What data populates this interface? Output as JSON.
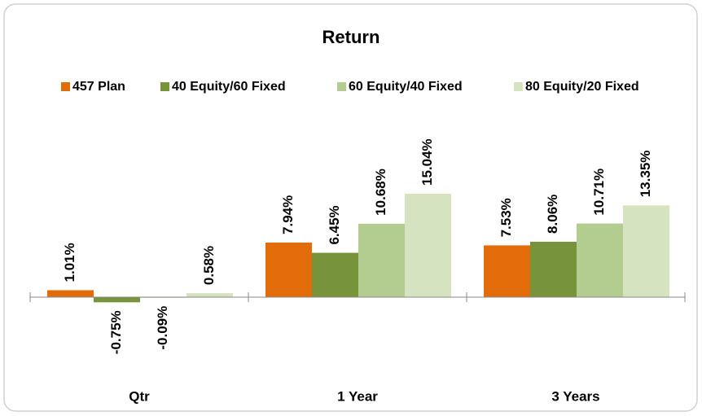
{
  "chart_data": {
    "type": "bar",
    "title": "Return",
    "categories": [
      "Qtr",
      "1 Year",
      "3 Years"
    ],
    "series": [
      {
        "name": "457 Plan",
        "color": "#e36c0a",
        "values": [
          1.01,
          7.94,
          7.53
        ],
        "value_labels": [
          "1.01%",
          "7.94%",
          "7.53%"
        ]
      },
      {
        "name": "40 Equity/60 Fixed",
        "color": "#77933c",
        "values": [
          -0.75,
          6.45,
          8.06
        ],
        "value_labels": [
          "-0.75%",
          "6.45%",
          "8.06%"
        ]
      },
      {
        "name": "60 Equity/40 Fixed",
        "color": "#b3cc8f",
        "values": [
          -0.09,
          10.68,
          10.71
        ],
        "value_labels": [
          "-0.09%",
          "10.68%",
          "10.71%"
        ]
      },
      {
        "name": "80 Equity/20 Fixed",
        "color": "#d5e3c0",
        "values": [
          0.58,
          15.04,
          13.35
        ],
        "value_labels": [
          "0.58%",
          "15.04%",
          "13.35%"
        ]
      }
    ],
    "legend": "top"
  }
}
